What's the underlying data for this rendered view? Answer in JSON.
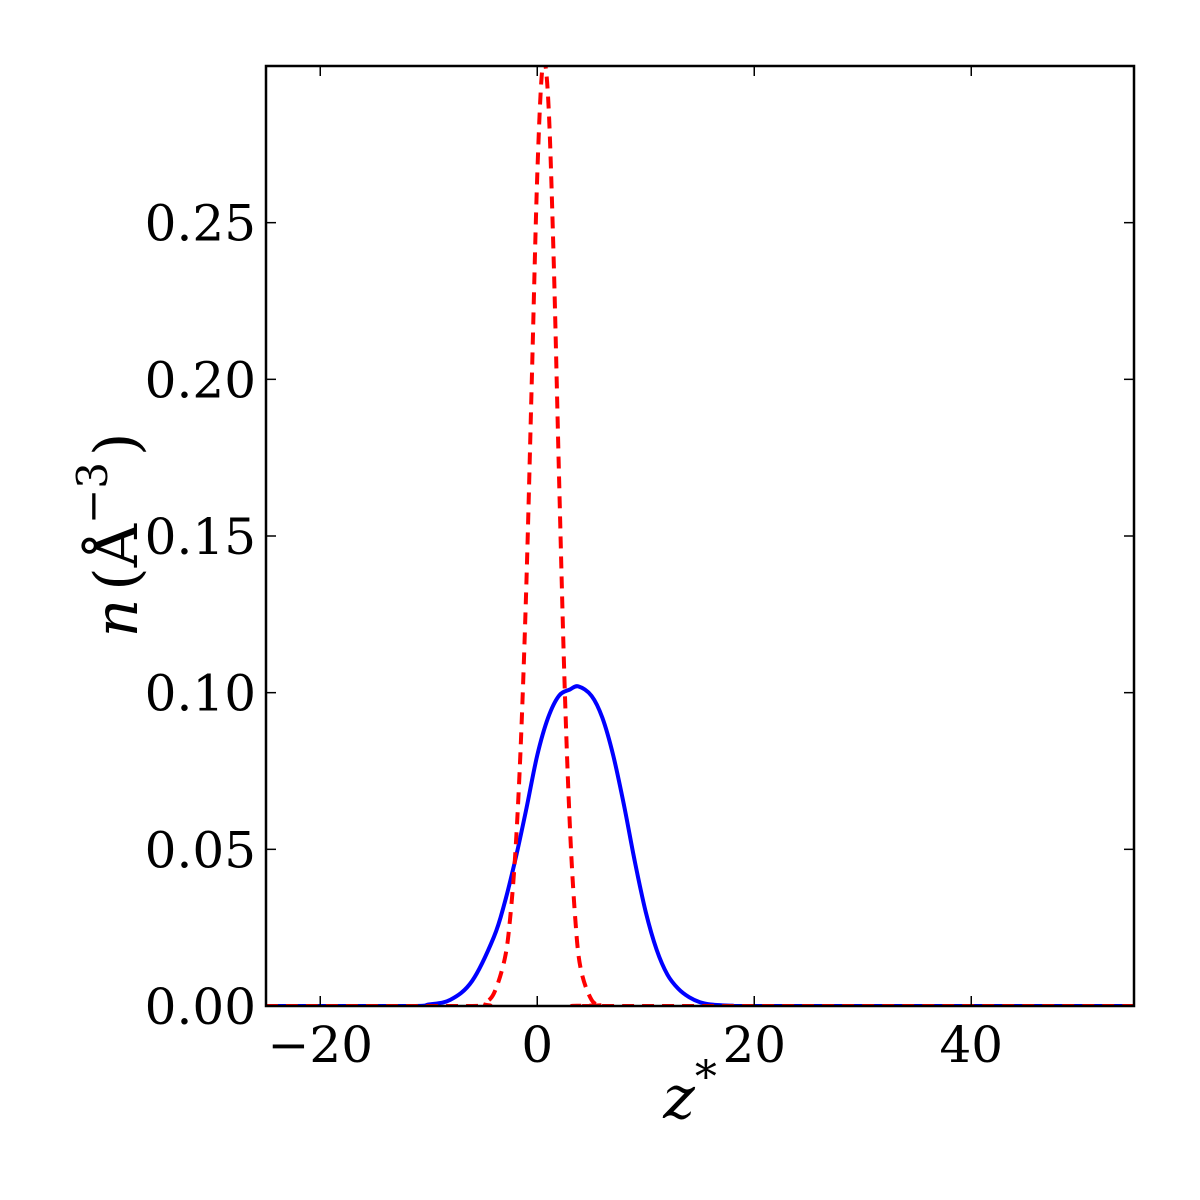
{
  "chart_data": {
    "type": "line",
    "title": "",
    "xlabel_var": "z",
    "xlabel_sup": "*",
    "ylabel_var": "n",
    "ylabel_open": "(",
    "ylabel_unit": "Å",
    "ylabel_sup": "−3",
    "ylabel_close": ")",
    "xlim": [
      -25,
      55
    ],
    "ylim": [
      0,
      0.3
    ],
    "xticks": [
      -20,
      0,
      20,
      40
    ],
    "xtick_labels": [
      "−20",
      "0",
      "20",
      "40"
    ],
    "yticks": [
      0.0,
      0.05,
      0.1,
      0.15,
      0.2,
      0.25
    ],
    "ytick_labels": [
      "0.00",
      "0.05",
      "0.10",
      "0.15",
      "0.20",
      "0.25"
    ],
    "grid": false,
    "series": [
      {
        "style": "solid",
        "color": "#0000ff",
        "x": [
          -25,
          -12,
          -10,
          -8,
          -6,
          -4,
          -3,
          -2,
          -1,
          0,
          1,
          2,
          3,
          3.8,
          5,
          6,
          7,
          8,
          9,
          10,
          11,
          12,
          13,
          14,
          15,
          16,
          18,
          20,
          55
        ],
        "y": [
          0,
          0,
          0.0005,
          0.002,
          0.008,
          0.022,
          0.033,
          0.047,
          0.063,
          0.08,
          0.092,
          0.099,
          0.101,
          0.102,
          0.099,
          0.092,
          0.08,
          0.064,
          0.046,
          0.03,
          0.018,
          0.01,
          0.0055,
          0.0028,
          0.0012,
          0.0005,
          0.0001,
          0,
          0
        ]
      },
      {
        "style": "dashed",
        "color": "#ff0000",
        "x": [
          -25,
          -6,
          -5,
          -4,
          -3,
          -2.5,
          -2,
          -1.5,
          -1,
          -0.5,
          0,
          0.5,
          1,
          1.5,
          2,
          2.5,
          3,
          3.5,
          4,
          5,
          6,
          7,
          55
        ],
        "y": [
          0,
          0,
          0.0008,
          0.004,
          0.015,
          0.028,
          0.05,
          0.085,
          0.135,
          0.2,
          0.265,
          0.3,
          0.29,
          0.24,
          0.17,
          0.105,
          0.058,
          0.028,
          0.012,
          0.002,
          0.0003,
          0,
          0
        ]
      }
    ]
  }
}
